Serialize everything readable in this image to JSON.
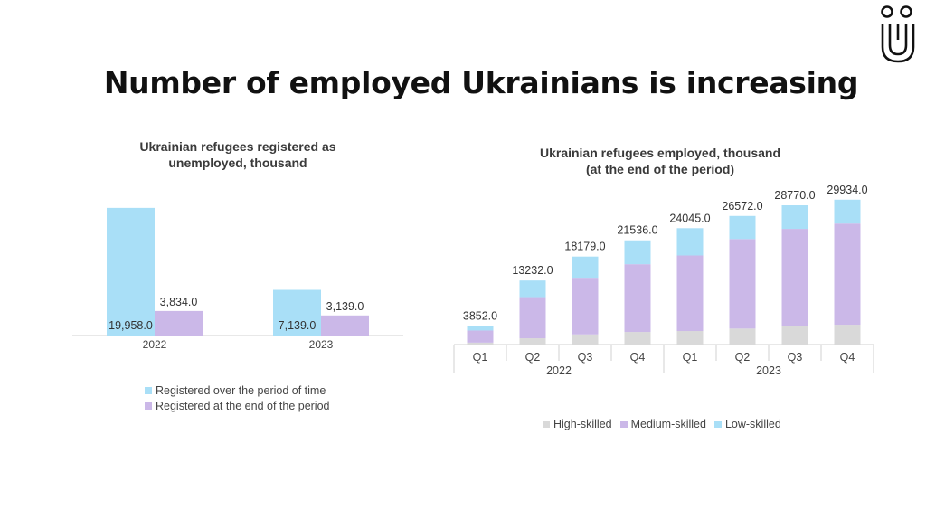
{
  "page": {
    "title": "Number of employed Ukrainians is increasing",
    "logo_icon": "ui-logo-icon"
  },
  "colors": {
    "light_blue": "#a9dff7",
    "lavender": "#cbb8e8",
    "gray": "#d9d9d9",
    "axis": "#d0d0d0",
    "text": "#333333"
  },
  "chart_data": [
    {
      "type": "bar",
      "title": "Ukrainian refugees registered as unemployed, thousand",
      "title_lines": [
        "Ukrainian refugees registered as",
        "unemployed, thousand"
      ],
      "categories": [
        "2022",
        "2023"
      ],
      "series": [
        {
          "name": "Registered over the period of time",
          "values": [
            19958.0,
            7139.0
          ],
          "labels": [
            "19,958.0",
            "7,139.0"
          ],
          "color": "#a9dff7"
        },
        {
          "name": "Registered at the end of the period",
          "values": [
            3834.0,
            3139.0
          ],
          "labels": [
            "3,834.0",
            "3,139.0"
          ],
          "color": "#cbb8e8"
        }
      ],
      "ylim": [
        0,
        28000
      ],
      "grid": false,
      "legend_position": "bottom"
    },
    {
      "type": "bar",
      "stacked": true,
      "title": "Ukrainian refugees employed, thousand (at the end of the period)",
      "title_lines": [
        "Ukrainian refugees employed, thousand",
        "(at the end of the period)"
      ],
      "categories": [
        "Q1",
        "Q2",
        "Q3",
        "Q4",
        "Q1",
        "Q2",
        "Q3",
        "Q4"
      ],
      "groups": [
        {
          "label": "2022",
          "span": 4
        },
        {
          "label": "2023",
          "span": 4
        }
      ],
      "series": [
        {
          "name": "High-skilled",
          "values": [
            400,
            1300,
            2100,
            2600,
            2800,
            3300,
            3800,
            4100
          ],
          "color": "#d9d9d9"
        },
        {
          "name": "Medium-skilled",
          "values": [
            2500,
            8500,
            11700,
            14000,
            15600,
            18500,
            20100,
            20900
          ],
          "color": "#cbb8e8"
        },
        {
          "name": "Low-skilled",
          "values": [
            952,
            3432,
            4379,
            4936,
            5645,
            4772,
            4870,
            4934
          ],
          "color": "#a9dff7"
        }
      ],
      "totals": [
        3852.0,
        13232.0,
        18179.0,
        21536.0,
        24045.0,
        26572.0,
        28770.0,
        29934.0
      ],
      "total_labels": [
        "3852.0",
        "13232.0",
        "18179.0",
        "21536.0",
        "24045.0",
        "26572.0",
        "28770.0",
        "29934.0"
      ],
      "ylim": [
        0,
        31500
      ],
      "grid": false,
      "legend_position": "bottom"
    }
  ]
}
